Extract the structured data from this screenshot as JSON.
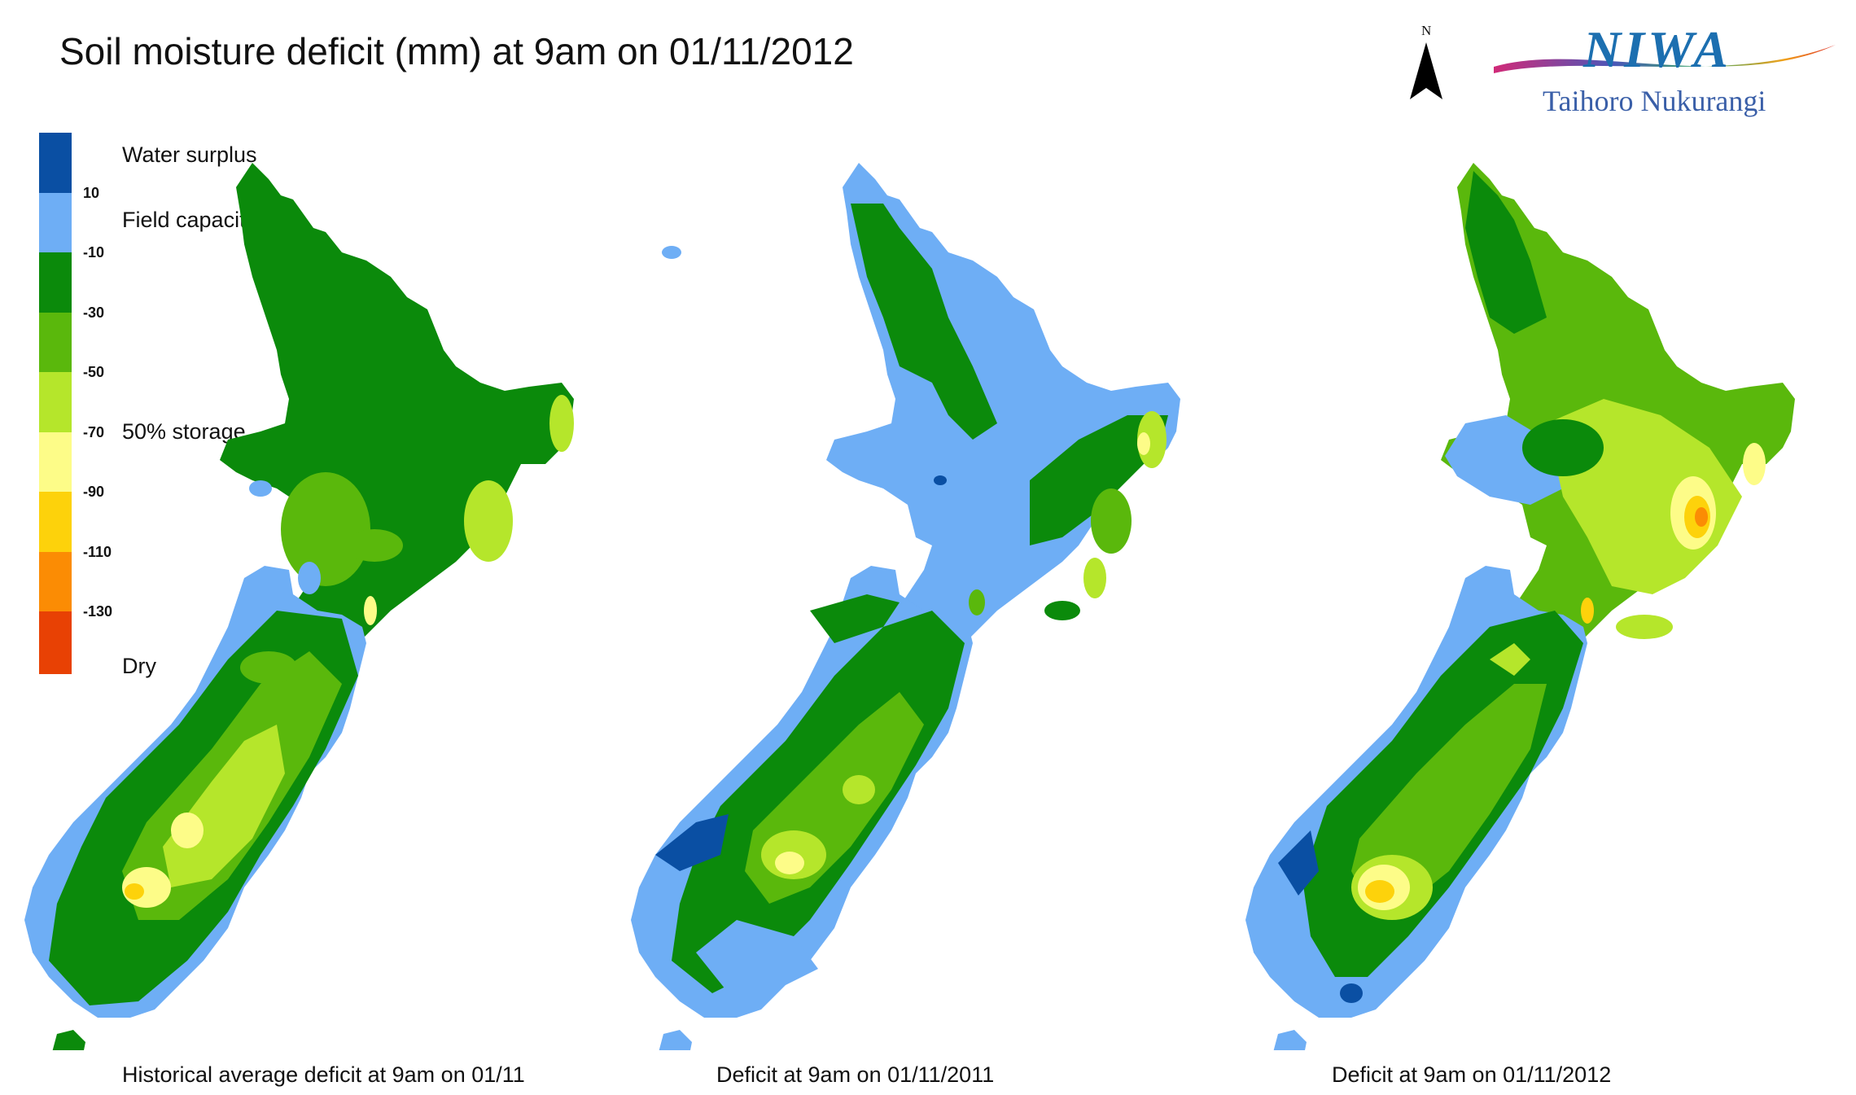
{
  "title": "Soil moisture deficit (mm) at  9am on 01/11/2012",
  "legend": {
    "colors": [
      "#0a4fa3",
      "#6eaef5",
      "#0b8a0b",
      "#5ab80c",
      "#b5e62b",
      "#fdfc88",
      "#fdd20b",
      "#fb8c04",
      "#e84104"
    ],
    "ticks": [
      "10",
      "-10",
      "-30",
      "-50",
      "-70",
      "-90",
      "-110",
      "-130"
    ],
    "labels": {
      "water_surplus": "Water surplus",
      "field_capacity": "Field capacity",
      "storage": "50% storage",
      "dry": "Dry"
    }
  },
  "maps": [
    {
      "caption": "Historical average deficit at  9am on 01/11"
    },
    {
      "caption": "Deficit at  9am on 01/11/2011"
    },
    {
      "caption": "Deficit at  9am on 01/11/2012"
    }
  ],
  "north": "N",
  "logo": {
    "name": "NIWA",
    "subtitle": "Taihoro Nukurangi"
  }
}
